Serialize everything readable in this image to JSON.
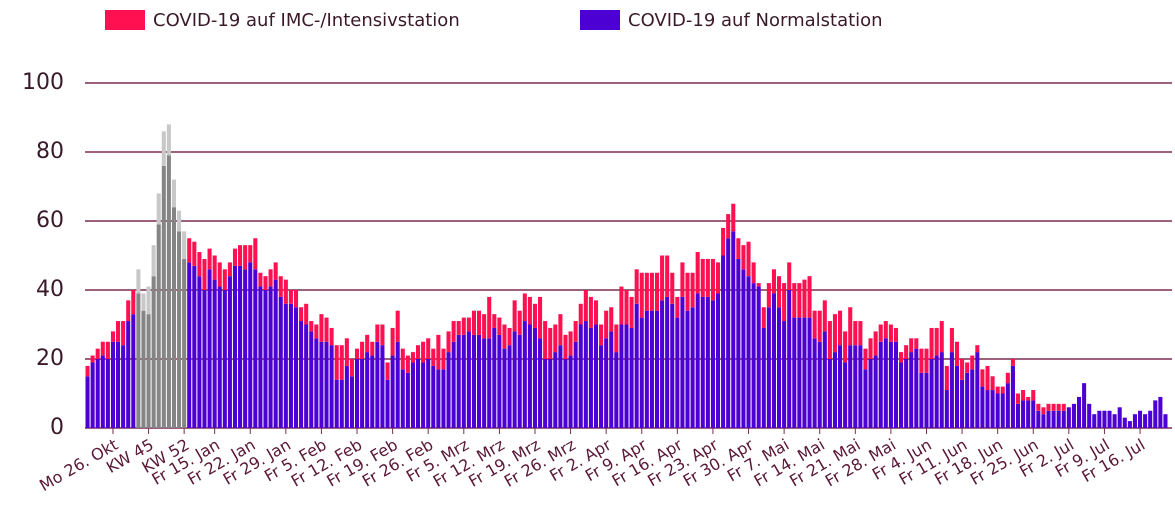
{
  "chart_data": {
    "type": "stacked_bar",
    "ylim": [
      0,
      100
    ],
    "yticks": [
      0,
      20,
      40,
      60,
      80,
      100
    ],
    "grid": true,
    "grid_color": "#7b2d52",
    "categories": [
      null,
      null,
      null,
      null,
      null,
      "Mo 26. Okt",
      null,
      null,
      null,
      null,
      null,
      null,
      "KW 45",
      null,
      null,
      null,
      null,
      null,
      null,
      "KW 52",
      null,
      null,
      null,
      null,
      null,
      "Fr 15. Jan",
      null,
      null,
      null,
      null,
      null,
      null,
      "Fr 22. Jan",
      null,
      null,
      null,
      null,
      null,
      null,
      "Fr 29. Jan",
      null,
      null,
      null,
      null,
      null,
      null,
      "Fr 5. Feb",
      null,
      null,
      null,
      null,
      null,
      null,
      "Fr 12. Feb",
      null,
      null,
      null,
      null,
      null,
      null,
      "Fr 19. Feb",
      null,
      null,
      null,
      null,
      null,
      null,
      "Fr 26. Feb",
      null,
      null,
      null,
      null,
      null,
      null,
      "Fr 5. Mrz",
      null,
      null,
      null,
      null,
      null,
      null,
      "Fr 12. Mrz",
      null,
      null,
      null,
      null,
      null,
      null,
      "Fr 19. Mrz",
      null,
      null,
      null,
      null,
      null,
      null,
      "Fr 26. Mrz",
      null,
      null,
      null,
      null,
      null,
      null,
      "Fr 2. Apr",
      null,
      null,
      null,
      null,
      null,
      null,
      "Fr 9. Apr",
      null,
      null,
      null,
      null,
      null,
      null,
      "Fr 16. Apr",
      null,
      null,
      null,
      null,
      null,
      null,
      "Fr 23. Apr",
      null,
      null,
      null,
      null,
      null,
      null,
      "Fr 30. Apr",
      null,
      null,
      null,
      null,
      null,
      null,
      "Fr 7. Mai",
      null,
      null,
      null,
      null,
      null,
      null,
      "Fr 14. Mai",
      null,
      null,
      null,
      null,
      null,
      null,
      "Fr 21. Mai",
      null,
      null,
      null,
      null,
      null,
      null,
      "Fr 28. Mai",
      null,
      null,
      null,
      null,
      null,
      null,
      "Fr 4. Jun",
      null,
      null,
      null,
      null,
      null,
      null,
      "Fr 11. Jun",
      null,
      null,
      null,
      null,
      null,
      null,
      "Fr 18. Jun",
      null,
      null,
      null,
      null,
      null,
      null,
      "Fr 25. Jun",
      null,
      null,
      null,
      null,
      null,
      null,
      "Fr 2. Jul",
      null,
      null,
      null,
      null,
      null,
      null,
      "Fr 9. Jul",
      null,
      null,
      null,
      null,
      null,
      null,
      "Fr 16. Jul",
      null,
      null,
      null,
      null,
      null
    ],
    "series": [
      {
        "name": "COVID-19 auf IMC-/Intensivstation",
        "color": "#ff1050",
        "values": [
          3,
          2,
          3,
          4,
          5,
          3,
          6,
          7,
          6,
          7,
          null,
          null,
          null,
          null,
          null,
          null,
          null,
          null,
          null,
          null,
          7,
          7,
          7,
          9,
          6,
          7,
          7,
          6,
          4,
          5,
          6,
          7,
          5,
          9,
          4,
          4,
          5,
          5,
          6,
          7,
          4,
          5,
          4,
          6,
          3,
          4,
          8,
          7,
          5,
          10,
          10,
          8,
          5,
          3,
          5,
          5,
          4,
          5,
          6,
          5,
          8,
          9,
          6,
          5,
          3,
          4,
          6,
          6,
          5,
          10,
          6,
          6,
          6,
          4,
          5,
          4,
          7,
          7,
          7,
          12,
          4,
          5,
          7,
          5,
          9,
          7,
          8,
          8,
          7,
          12,
          11,
          9,
          8,
          9,
          7,
          7,
          6,
          6,
          9,
          9,
          7,
          6,
          8,
          7,
          8,
          11,
          10,
          9,
          10,
          13,
          11,
          11,
          11,
          13,
          12,
          9,
          6,
          10,
          11,
          10,
          12,
          11,
          11,
          12,
          9,
          8,
          7,
          8,
          6,
          7,
          10,
          6,
          1,
          6,
          7,
          7,
          9,
          11,
          8,
          10,
          10,
          11,
          12,
          8,
          9,
          9,
          11,
          11,
          10,
          9,
          11,
          7,
          7,
          6,
          6,
          7,
          5,
          5,
          5,
          4,
          3,
          4,
          4,
          3,
          7,
          7,
          9,
          8,
          9,
          7,
          7,
          7,
          6,
          3,
          4,
          2,
          5,
          7,
          4,
          2,
          2,
          3,
          2,
          3,
          3,
          1,
          3,
          2,
          2,
          2,
          2,
          2,
          2,
          0,
          0,
          0,
          0,
          0,
          0,
          0,
          0,
          0,
          0,
          0,
          0,
          0,
          0,
          0,
          0,
          0,
          0,
          0,
          0
        ]
      },
      {
        "name": "COVID-19 auf Normalstation",
        "color": "#4d00d4",
        "values": [
          15,
          19,
          20,
          21,
          20,
          25,
          25,
          24,
          31,
          33,
          null,
          null,
          null,
          null,
          null,
          null,
          null,
          null,
          null,
          null,
          48,
          47,
          44,
          40,
          46,
          43,
          41,
          40,
          44,
          47,
          47,
          46,
          48,
          46,
          41,
          40,
          41,
          43,
          38,
          36,
          36,
          35,
          31,
          30,
          28,
          26,
          25,
          25,
          24,
          14,
          14,
          18,
          15,
          20,
          20,
          22,
          21,
          25,
          24,
          14,
          21,
          25,
          17,
          16,
          19,
          20,
          19,
          20,
          18,
          17,
          17,
          22,
          25,
          27,
          27,
          28,
          27,
          27,
          26,
          26,
          29,
          27,
          23,
          24,
          28,
          27,
          31,
          30,
          29,
          26,
          20,
          20,
          22,
          24,
          20,
          21,
          25,
          30,
          31,
          29,
          30,
          24,
          26,
          28,
          22,
          30,
          30,
          29,
          36,
          32,
          34,
          34,
          34,
          37,
          38,
          36,
          32,
          38,
          34,
          35,
          39,
          38,
          38,
          37,
          39,
          50,
          55,
          57,
          49,
          46,
          44,
          42,
          41,
          29,
          35,
          39,
          35,
          31,
          40,
          32,
          32,
          32,
          32,
          26,
          25,
          28,
          20,
          22,
          24,
          19,
          24,
          24,
          24,
          17,
          20,
          21,
          25,
          26,
          25,
          25,
          19,
          20,
          22,
          23,
          16,
          16,
          20,
          21,
          22,
          11,
          22,
          18,
          14,
          16,
          17,
          22,
          12,
          11,
          11,
          10,
          10,
          13,
          18,
          7,
          8,
          8,
          8,
          5,
          4,
          5,
          5,
          5,
          5,
          6,
          7,
          9,
          13,
          7,
          4,
          5,
          5,
          5,
          4,
          6,
          3,
          2,
          4,
          5,
          4,
          5,
          8,
          9,
          4
        ]
      },
      {
        "color": "#c8c8c8",
        "values": [
          null,
          null,
          null,
          null,
          null,
          null,
          null,
          null,
          null,
          null,
          7,
          5,
          8,
          9,
          9,
          10,
          9,
          8,
          6,
          8,
          null,
          null,
          null,
          null,
          null,
          null,
          null,
          null,
          null,
          null,
          null,
          null,
          null,
          null,
          null,
          null,
          null,
          null,
          null,
          null,
          null,
          null,
          null,
          null,
          null,
          null,
          null,
          null,
          null,
          null,
          null,
          null,
          null,
          null,
          null,
          null,
          null,
          null,
          null,
          null,
          null,
          null,
          null,
          null,
          null,
          null,
          null,
          null,
          null,
          null,
          null,
          null,
          null,
          null,
          null,
          null,
          null,
          null,
          null,
          null,
          null,
          null,
          null,
          null,
          null,
          null,
          null,
          null,
          null,
          null,
          null,
          null,
          null,
          null,
          null,
          null,
          null,
          null,
          null,
          null,
          null,
          null,
          null,
          null,
          null,
          null,
          null,
          null,
          null,
          null,
          null,
          null,
          null,
          null,
          null,
          null,
          null,
          null,
          null,
          null,
          null,
          null,
          null,
          null,
          null,
          null,
          null,
          null,
          null,
          null,
          null,
          null,
          null,
          null,
          null,
          null,
          null,
          null,
          null,
          null,
          null,
          null,
          null,
          null,
          null,
          null,
          null,
          null,
          null,
          null,
          null,
          null,
          null,
          null,
          null,
          null,
          null,
          null,
          null,
          null,
          null,
          null,
          null,
          null,
          null,
          null,
          null,
          null,
          null,
          null,
          null,
          null,
          null,
          null,
          null,
          null,
          null,
          null,
          null,
          null,
          null,
          null,
          null,
          null,
          null,
          null,
          null,
          null,
          null,
          null,
          null,
          null,
          null,
          null,
          null,
          null,
          null,
          null,
          null,
          null,
          null,
          null,
          null,
          null,
          null,
          null,
          null,
          null,
          null,
          null,
          null,
          null,
          null
        ]
      },
      {
        "color": "#858585",
        "values": [
          null,
          null,
          null,
          null,
          null,
          null,
          null,
          null,
          null,
          null,
          39,
          34,
          33,
          44,
          59,
          76,
          79,
          64,
          57,
          49,
          null,
          null,
          null,
          null,
          null,
          null,
          null,
          null,
          null,
          null,
          null,
          null,
          null,
          null,
          null,
          null,
          null,
          null,
          null,
          null,
          null,
          null,
          null,
          null,
          null,
          null,
          null,
          null,
          null,
          null,
          null,
          null,
          null,
          null,
          null,
          null,
          null,
          null,
          null,
          null,
          null,
          null,
          null,
          null,
          null,
          null,
          null,
          null,
          null,
          null,
          null,
          null,
          null,
          null,
          null,
          null,
          null,
          null,
          null,
          null,
          null,
          null,
          null,
          null,
          null,
          null,
          null,
          null,
          null,
          null,
          null,
          null,
          null,
          null,
          null,
          null,
          null,
          null,
          null,
          null,
          null,
          null,
          null,
          null,
          null,
          null,
          null,
          null,
          null,
          null,
          null,
          null,
          null,
          null,
          null,
          null,
          null,
          null,
          null,
          null,
          null,
          null,
          null,
          null,
          null,
          null,
          null,
          null,
          null,
          null,
          null,
          null,
          null,
          null,
          null,
          null,
          null,
          null,
          null,
          null,
          null,
          null,
          null,
          null,
          null,
          null,
          null,
          null,
          null,
          null,
          null,
          null,
          null,
          null,
          null,
          null,
          null,
          null,
          null,
          null,
          null,
          null,
          null,
          null,
          null,
          null,
          null,
          null,
          null,
          null,
          null,
          null,
          null,
          null,
          null,
          null,
          null,
          null,
          null,
          null,
          null,
          null,
          null,
          null,
          null,
          null,
          null,
          null,
          null,
          null,
          null,
          null,
          null,
          null,
          null,
          null,
          null,
          null,
          null,
          null,
          null,
          null,
          null,
          null,
          null,
          null,
          null,
          null,
          null,
          null,
          null,
          null,
          null
        ]
      }
    ]
  }
}
